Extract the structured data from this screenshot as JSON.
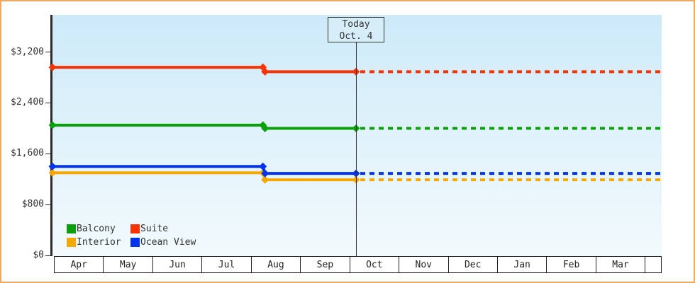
{
  "chart_data": {
    "type": "line",
    "title": "",
    "x_categories": [
      "Apr",
      "May",
      "Jun",
      "Jul",
      "Aug",
      "Sep",
      "Oct",
      "Nov",
      "Dec",
      "Jan",
      "Feb",
      "Mar"
    ],
    "y_tick_labels": [
      "$3,200",
      "$2,400",
      "$1,600",
      "$800",
      "$0"
    ],
    "y_tick_values": [
      3200,
      2400,
      1600,
      800,
      0
    ],
    "ylim": [
      0,
      3600
    ],
    "grid": false,
    "legend_position": "bottom-left",
    "today": {
      "line1": "Today",
      "line2": "Oct. 4",
      "month": "Oct",
      "day": 4
    },
    "price_drop": {
      "month": "Aug",
      "day": 9
    },
    "series": [
      {
        "name": "Suite",
        "color": "#f83200",
        "initial_value": 2960,
        "current_value": 2890,
        "drop_month": "Aug",
        "drop_day": 9,
        "dotted_after_today": true
      },
      {
        "name": "Balcony",
        "color": "#0aa00a",
        "initial_value": 2050,
        "current_value": 2000,
        "drop_month": "Aug",
        "drop_day": 9,
        "dotted_after_today": true
      },
      {
        "name": "Ocean View",
        "color": "#0034ee",
        "initial_value": 1400,
        "current_value": 1290,
        "drop_month": "Aug",
        "drop_day": 9,
        "dotted_after_today": true
      },
      {
        "name": "Interior",
        "color": "#f7a800",
        "initial_value": 1300,
        "current_value": 1190,
        "drop_month": "Aug",
        "drop_day": 9,
        "dotted_after_today": true
      }
    ],
    "legend": [
      {
        "label": "Balcony",
        "color": "#0aa00a"
      },
      {
        "label": "Suite",
        "color": "#f83200"
      },
      {
        "label": "Interior",
        "color": "#f7a800"
      },
      {
        "label": "Ocean View",
        "color": "#0034ee"
      }
    ]
  }
}
